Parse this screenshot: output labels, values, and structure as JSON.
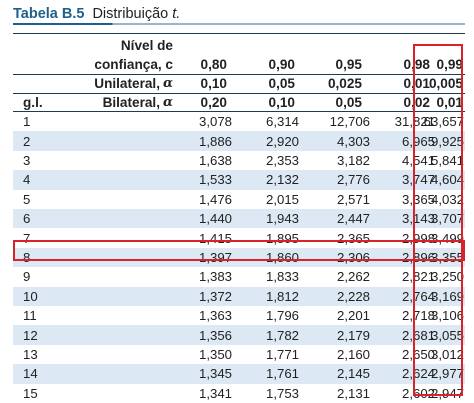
{
  "caption": {
    "label": "Tabela B.5",
    "title": "Distribuição",
    "title_italic": "t."
  },
  "header": {
    "nivel_line1": "Nível de",
    "nivel_line2": "confiança, c",
    "unilateral": "Unilateral,",
    "bilateral": "Bilateral,",
    "alpha_symbol": "α",
    "gl": "g.l.",
    "confidence": [
      "0,80",
      "0,90",
      "0,95",
      "0,98",
      "0,99"
    ],
    "unilateral_values": [
      "0,10",
      "0,05",
      "0,025",
      "0,01",
      "0,005"
    ],
    "bilateral_values": [
      "0,20",
      "0,10",
      "0,05",
      "0,02",
      "0,01"
    ]
  },
  "rows": [
    {
      "gl": "1",
      "values": [
        "3,078",
        "6,314",
        "12,706",
        "31,821",
        "63,657"
      ]
    },
    {
      "gl": "2",
      "values": [
        "1,886",
        "2,920",
        "4,303",
        "6,965",
        "9,925"
      ]
    },
    {
      "gl": "3",
      "values": [
        "1,638",
        "2,353",
        "3,182",
        "4,541",
        "5,841"
      ]
    },
    {
      "gl": "4",
      "values": [
        "1,533",
        "2,132",
        "2,776",
        "3,747",
        "4,604"
      ]
    },
    {
      "gl": "5",
      "values": [
        "1,476",
        "2,015",
        "2,571",
        "3,365",
        "4,032"
      ]
    },
    {
      "gl": "6",
      "values": [
        "1,440",
        "1,943",
        "2,447",
        "3,143",
        "3,707"
      ]
    },
    {
      "gl": "7",
      "values": [
        "1,415",
        "1,895",
        "2,365",
        "2,998",
        "3,499"
      ]
    },
    {
      "gl": "8",
      "values": [
        "1,397",
        "1,860",
        "2,306",
        "2,896",
        "3,355"
      ]
    },
    {
      "gl": "9",
      "values": [
        "1,383",
        "1,833",
        "2,262",
        "2,821",
        "3,250"
      ]
    },
    {
      "gl": "10",
      "values": [
        "1,372",
        "1,812",
        "2,228",
        "2,764",
        "3,169"
      ]
    },
    {
      "gl": "11",
      "values": [
        "1,363",
        "1,796",
        "2,201",
        "2,718",
        "3,106"
      ]
    },
    {
      "gl": "12",
      "values": [
        "1,356",
        "1,782",
        "2,179",
        "2,681",
        "3,055"
      ]
    },
    {
      "gl": "13",
      "values": [
        "1,350",
        "1,771",
        "2,160",
        "2,650",
        "3,012"
      ]
    },
    {
      "gl": "14",
      "values": [
        "1,345",
        "1,761",
        "2,145",
        "2,624",
        "2,977"
      ]
    },
    {
      "gl": "15",
      "values": [
        "1,341",
        "1,753",
        "2,131",
        "2,602",
        "2,947"
      ]
    }
  ],
  "colors": {
    "label_blue": "#1f5f8e",
    "row_shade": "#dce9f4",
    "highlight_red": "#d8232a",
    "rule_dark": "#1f3b52"
  }
}
